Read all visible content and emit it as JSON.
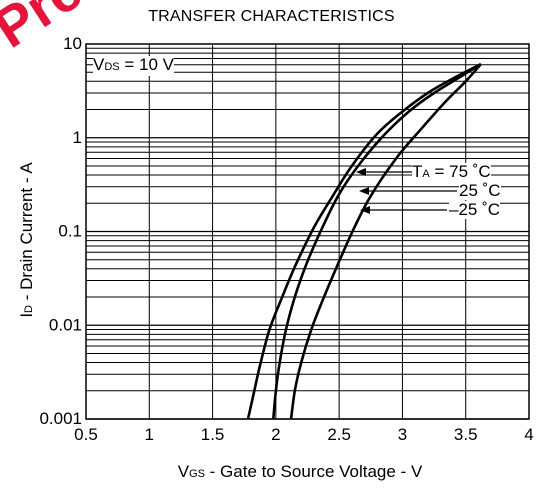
{
  "watermark": {
    "text": "Preliminary Product",
    "color": "#e4002b"
  },
  "chart_data": {
    "type": "line",
    "title": "TRANSFER CHARACTERISTICS",
    "xlabel": {
      "main": "V",
      "sub": "GS",
      "rest": " - Gate to Source Voltage - V"
    },
    "ylabel": {
      "main": "I",
      "sub": "D",
      "rest": " - Drain Current - A"
    },
    "condition": {
      "main": "V",
      "sub": "DS",
      "rest": " = 10 V"
    },
    "x_scale": "linear",
    "y_scale": "log",
    "xlim": [
      0.5,
      4
    ],
    "ylim": [
      0.001,
      10
    ],
    "x_ticks": [
      "0.5",
      "1",
      "1.5",
      "2",
      "2.5",
      "3",
      "3.5",
      "4"
    ],
    "y_ticks": [
      "0.001",
      "0.01",
      "0.1",
      "1",
      "10"
    ],
    "grid": true,
    "series": [
      {
        "name": "T = 75 °C",
        "label_main": "T",
        "label_sub": "A",
        "label_rest": " = 75 ˚C",
        "x": [
          1.78,
          1.83,
          1.88,
          1.95,
          2.05,
          2.15,
          2.3,
          2.45,
          2.6,
          2.8,
          3.0,
          3.2,
          3.4,
          3.62
        ],
        "y": [
          0.001,
          0.002,
          0.004,
          0.009,
          0.02,
          0.042,
          0.11,
          0.24,
          0.5,
          1.1,
          1.9,
          3.0,
          4.3,
          6.1
        ]
      },
      {
        "name": "25 °C",
        "label_main": "25 ˚C",
        "x": [
          1.98,
          2.0,
          2.03,
          2.08,
          2.15,
          2.25,
          2.38,
          2.5,
          2.65,
          2.85,
          3.05,
          3.25,
          3.45,
          3.62
        ],
        "y": [
          0.001,
          0.002,
          0.004,
          0.009,
          0.02,
          0.048,
          0.12,
          0.25,
          0.5,
          1.05,
          1.9,
          3.0,
          4.4,
          6.1
        ]
      },
      {
        "name": "–25 °C",
        "label_main": "–25 ˚C",
        "x": [
          2.12,
          2.15,
          2.2,
          2.28,
          2.38,
          2.5,
          2.62,
          2.75,
          2.95,
          3.15,
          3.35,
          3.5,
          3.62
        ],
        "y": [
          0.001,
          0.002,
          0.004,
          0.009,
          0.02,
          0.048,
          0.11,
          0.24,
          0.6,
          1.25,
          2.5,
          4.0,
          6.1
        ]
      }
    ],
    "colors": {
      "line": "#000000",
      "grid": "#000000",
      "background": "#ffffff"
    }
  }
}
